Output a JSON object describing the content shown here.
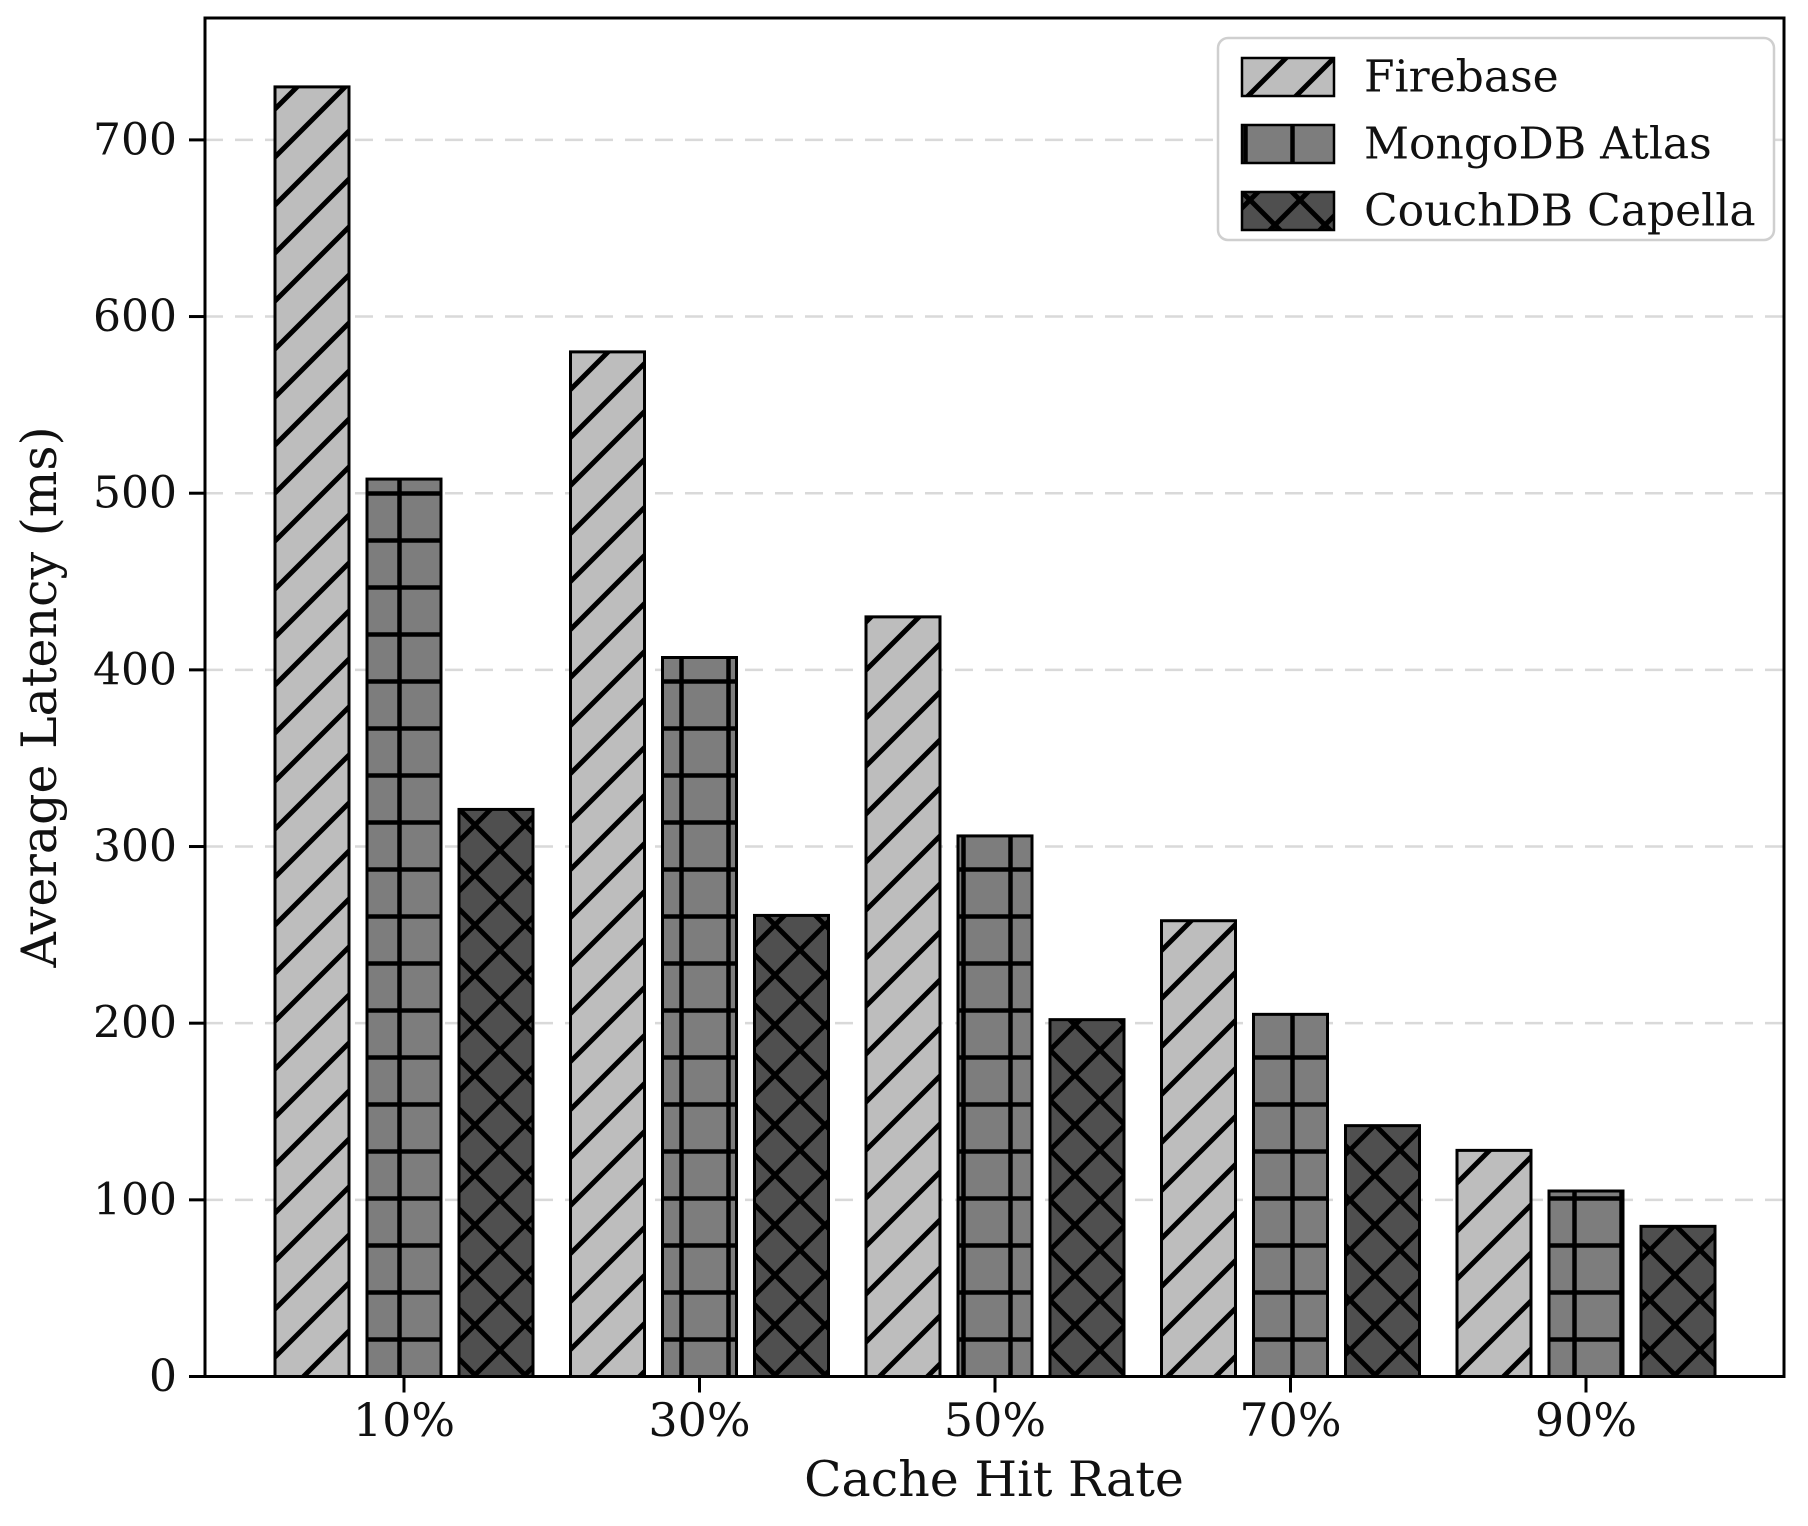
{
  "chart_data": {
    "type": "bar",
    "title": "",
    "xlabel": "Cache Hit Rate",
    "ylabel": "Average Latency (ms)",
    "categories": [
      "10%",
      "30%",
      "50%",
      "70%",
      "90%"
    ],
    "series": [
      {
        "name": "Firebase",
        "values": [
          730,
          580,
          430,
          258,
          128
        ],
        "color": "#bdbdbd",
        "hatch": "diagonal"
      },
      {
        "name": "MongoDB Atlas",
        "values": [
          508,
          407,
          306,
          205,
          105
        ],
        "color": "#7d7d7d",
        "hatch": "grid"
      },
      {
        "name": "CouchDB Capella",
        "values": [
          321,
          261,
          202,
          142,
          85
        ],
        "color": "#4f4f4f",
        "hatch": "cross"
      }
    ],
    "ylim": [
      0,
      769
    ],
    "yticks": [
      0,
      100,
      200,
      300,
      400,
      500,
      600,
      700
    ],
    "grid": "horizontal-dashed",
    "legend_position": "upper-right",
    "colors": {
      "bar_edge": "#000000",
      "gridline": "#d9d9d9",
      "axis": "#000000",
      "legend_border": "#cfcfcf",
      "background": "#ffffff"
    }
  }
}
